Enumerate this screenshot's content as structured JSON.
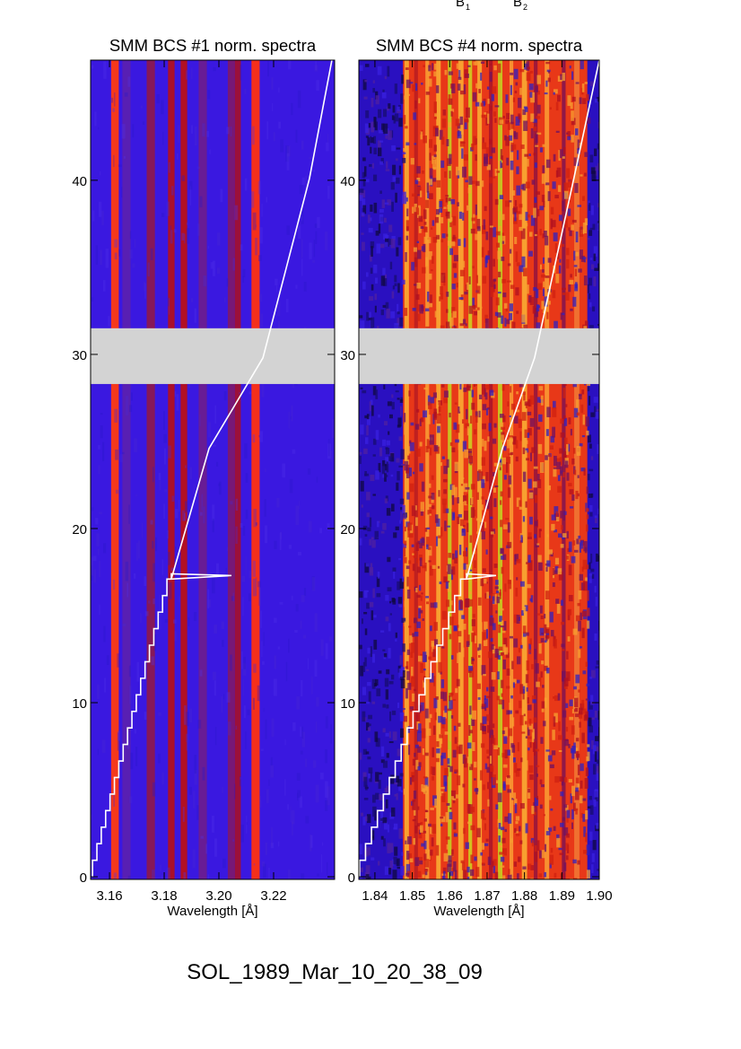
{
  "header": {
    "top_labels": [
      "B",
      "1",
      "B",
      "2"
    ]
  },
  "footer": {
    "event_id": "SOL_1989_Mar_10_20_38_09"
  },
  "chart_data": [
    {
      "type": "heatmap",
      "title": "SMM BCS #1 norm. spectra",
      "xlabel": "Wavelength [Å]",
      "ylabel": "",
      "xlim": [
        3.1531,
        3.2423
      ],
      "ylim": [
        -0.15,
        46.9
      ],
      "xticks": [
        3.16,
        3.18,
        3.2,
        3.22
      ],
      "xtick_labels": [
        "3.16",
        "3.18",
        "3.20",
        "3.22"
      ],
      "yticks": [
        0,
        10,
        20,
        30,
        40
      ],
      "ytick_labels": [
        "0",
        "10",
        "20",
        "30",
        "40"
      ],
      "data_gap": [
        28.3,
        31.5
      ],
      "background_color": "#3a18e0",
      "line_features": [
        {
          "wavelength": 3.162,
          "width": 0.0028,
          "color": "#ff3a10"
        },
        {
          "wavelength": 3.1662,
          "width": 0.003,
          "color": "#5a20b0"
        },
        {
          "wavelength": 3.1751,
          "width": 0.003,
          "color": "#8a1850"
        },
        {
          "wavelength": 3.1826,
          "width": 0.0024,
          "color": "#b01020"
        },
        {
          "wavelength": 3.1872,
          "width": 0.0024,
          "color": "#b81018"
        },
        {
          "wavelength": 3.1941,
          "width": 0.003,
          "color": "#6a1c90"
        },
        {
          "wavelength": 3.2045,
          "width": 0.0025,
          "color": "#7a1870"
        },
        {
          "wavelength": 3.2069,
          "width": 0.0022,
          "color": "#a01030"
        },
        {
          "wavelength": 3.2134,
          "width": 0.003,
          "color": "#ff3010"
        }
      ],
      "trace": {
        "color": "#ffffff",
        "step_start": [
          3.1538,
          0
        ],
        "step_end": [
          3.1826,
          17.1
        ],
        "spike": [
          3.2046,
          17.3
        ],
        "points": [
          [
            3.1826,
            17.1
          ],
          [
            3.1964,
            24.6
          ],
          [
            3.2161,
            29.8
          ],
          [
            3.2331,
            40.1
          ],
          [
            3.2413,
            46.9
          ]
        ]
      }
    },
    {
      "type": "heatmap",
      "title": "SMM BCS #4 norm. spectra",
      "xlabel": "Wavelength [Å]",
      "ylabel": "",
      "xlim": [
        1.8357,
        1.9
      ],
      "ylim": [
        -0.15,
        46.9
      ],
      "xticks": [
        1.84,
        1.85,
        1.86,
        1.87,
        1.88,
        1.89,
        1.9
      ],
      "xtick_labels": [
        "1.84",
        "1.85",
        "1.86",
        "1.87",
        "1.88",
        "1.89",
        "1.90"
      ],
      "yticks": [
        0,
        10,
        20,
        30,
        40
      ],
      "ytick_labels": [
        "0",
        "10",
        "20",
        "30",
        "40"
      ],
      "data_gap": [
        28.3,
        31.5
      ],
      "background_color": "#2a10c0",
      "emission_band": [
        1.8475,
        1.8968
      ],
      "line_features": [
        {
          "wavelength": 1.8485,
          "width": 0.0012,
          "color": "#f8a030"
        },
        {
          "wavelength": 1.851,
          "width": 0.001,
          "color": "#c02020"
        },
        {
          "wavelength": 1.854,
          "width": 0.001,
          "color": "#f89030"
        },
        {
          "wavelength": 1.857,
          "width": 0.0012,
          "color": "#f8a030"
        },
        {
          "wavelength": 1.86,
          "width": 0.001,
          "color": "#c8c020"
        },
        {
          "wavelength": 1.863,
          "width": 0.0014,
          "color": "#f8a030"
        },
        {
          "wavelength": 1.8655,
          "width": 0.001,
          "color": "#d0c020"
        },
        {
          "wavelength": 1.868,
          "width": 0.0012,
          "color": "#f8a030"
        },
        {
          "wavelength": 1.871,
          "width": 0.001,
          "color": "#b01828"
        },
        {
          "wavelength": 1.8735,
          "width": 0.0012,
          "color": "#c8c020"
        },
        {
          "wavelength": 1.8765,
          "width": 0.001,
          "color": "#f89030"
        },
        {
          "wavelength": 1.88,
          "width": 0.0014,
          "color": "#f8a030"
        },
        {
          "wavelength": 1.883,
          "width": 0.001,
          "color": "#a01838"
        },
        {
          "wavelength": 1.886,
          "width": 0.0012,
          "color": "#f89030"
        },
        {
          "wavelength": 1.8905,
          "width": 0.001,
          "color": "#901848"
        },
        {
          "wavelength": 1.894,
          "width": 0.0014,
          "color": "#f07030"
        }
      ],
      "trace": {
        "color": "#ffffff",
        "step_start": [
          1.8359,
          0
        ],
        "step_end": [
          1.8645,
          17.1
        ],
        "spike": [
          1.8724,
          17.3
        ],
        "points": [
          [
            1.8645,
            17.1
          ],
          [
            1.8741,
            24.6
          ],
          [
            1.8827,
            29.8
          ],
          [
            1.8932,
            40.1
          ],
          [
            1.9,
            46.9
          ]
        ]
      }
    }
  ]
}
